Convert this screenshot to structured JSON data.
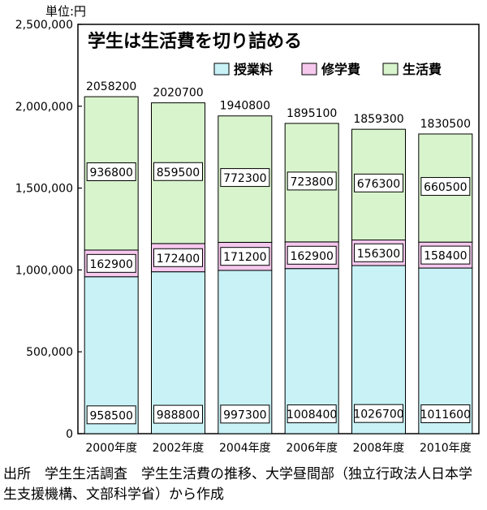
{
  "unit_label": "単位:円",
  "source_note": "出所　学生生活調査　学生生活費の推移、大学昼間部（独立行政法人日本学生支援機構、文部科学省）から作成",
  "chart_data": {
    "type": "bar",
    "stacked": true,
    "title": "学生は生活費を切り詰める",
    "categories": [
      "2000年度",
      "2002年度",
      "2004年度",
      "2006年度",
      "2008年度",
      "2010年度"
    ],
    "series": [
      {
        "name": "授業料",
        "color": "#c8f2f6",
        "values": [
          958500,
          988800,
          997300,
          1008400,
          1026700,
          1011600
        ]
      },
      {
        "name": "修学費",
        "color": "#f6c8ee",
        "values": [
          162900,
          172400,
          171200,
          162900,
          156300,
          158400
        ]
      },
      {
        "name": "生活費",
        "color": "#d8f4cc",
        "values": [
          936800,
          859500,
          772300,
          723800,
          676300,
          660500
        ]
      }
    ],
    "totals": [
      2058200,
      2020700,
      1940800,
      1895100,
      1859300,
      1830500
    ],
    "y_ticks": [
      "0",
      "500,000",
      "1,000,000",
      "1,500,000",
      "2,000,000",
      "2,500,000"
    ],
    "ylim": [
      0,
      2500000
    ],
    "legend_position": "top-right",
    "grid": false
  }
}
